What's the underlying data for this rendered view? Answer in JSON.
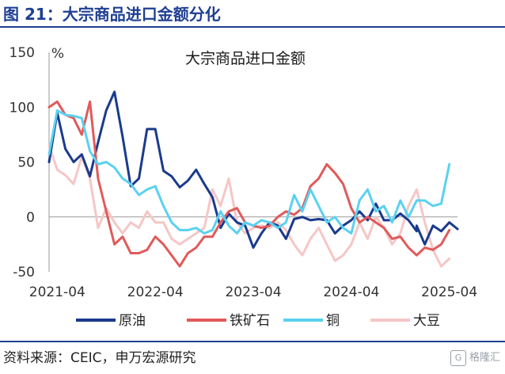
{
  "figure": {
    "title": "图 21：大宗商品进口金额分化"
  },
  "footer": {
    "source": "资料来源：CEIC，申万宏源研究",
    "watermark": "格隆汇"
  },
  "chart_data": {
    "type": "line",
    "title": "大宗商品进口金额",
    "ylabel": "%",
    "ylim": [
      -50,
      150
    ],
    "yticks": [
      150,
      100,
      50,
      0,
      -50
    ],
    "xlim": [
      "2021-03",
      "2025-05"
    ],
    "xticks": [
      "2021-04",
      "2022-04",
      "2023-04",
      "2024-04",
      "2025-04"
    ],
    "grid": false,
    "legend": "bottom",
    "series": [
      {
        "name": "原油",
        "color": "#1a3a8c",
        "points": [
          [
            "2021-03",
            50
          ],
          [
            "2021-04",
            95
          ],
          [
            "2021-05",
            62
          ],
          [
            "2021-06",
            50
          ],
          [
            "2021-07",
            57
          ],
          [
            "2021-08",
            37
          ],
          [
            "2021-09",
            68
          ],
          [
            "2021-10",
            97
          ],
          [
            "2021-11",
            114
          ],
          [
            "2021-12",
            73
          ],
          [
            "2022-01",
            28
          ],
          [
            "2022-02",
            35
          ],
          [
            "2022-03",
            80
          ],
          [
            "2022-04",
            80
          ],
          [
            "2022-05",
            42
          ],
          [
            "2022-06",
            37
          ],
          [
            "2022-07",
            27
          ],
          [
            "2022-08",
            33
          ],
          [
            "2022-09",
            43
          ],
          [
            "2022-10",
            30
          ],
          [
            "2022-11",
            18
          ],
          [
            "2022-12",
            -10
          ],
          [
            "2023-01",
            3
          ],
          [
            "2023-02",
            -5
          ],
          [
            "2023-03",
            -8
          ],
          [
            "2023-04",
            -28
          ],
          [
            "2023-05",
            -15
          ],
          [
            "2023-06",
            -5
          ],
          [
            "2023-07",
            -8
          ],
          [
            "2023-08",
            -20
          ],
          [
            "2023-09",
            -2
          ],
          [
            "2023-10",
            0
          ],
          [
            "2023-11",
            -3
          ],
          [
            "2023-12",
            -2
          ],
          [
            "2024-01",
            -3
          ],
          [
            "2024-02",
            -15
          ],
          [
            "2024-03",
            -8
          ],
          [
            "2024-04",
            -3
          ],
          [
            "2024-05",
            5
          ],
          [
            "2024-06",
            -3
          ],
          [
            "2024-07",
            12
          ],
          [
            "2024-08",
            -3
          ],
          [
            "2024-09",
            -3
          ],
          [
            "2024-10",
            3
          ],
          [
            "2024-11",
            -3
          ],
          [
            "2024-12",
            -13
          ],
          [
            "2024-12",
            -8
          ],
          [
            "2025-01",
            -25
          ],
          [
            "2025-02",
            -8
          ],
          [
            "2025-03",
            -13
          ],
          [
            "2025-04",
            -5
          ],
          [
            "2025-05",
            -11
          ]
        ]
      },
      {
        "name": "铁矿石",
        "color": "#e05a5a",
        "points": [
          [
            "2021-03",
            100
          ],
          [
            "2021-04",
            105
          ],
          [
            "2021-05",
            93
          ],
          [
            "2021-06",
            90
          ],
          [
            "2021-07",
            75
          ],
          [
            "2021-08",
            105
          ],
          [
            "2021-09",
            35
          ],
          [
            "2021-10",
            5
          ],
          [
            "2021-11",
            -25
          ],
          [
            "2021-12",
            -18
          ],
          [
            "2022-01",
            -33
          ],
          [
            "2022-02",
            -33
          ],
          [
            "2022-03",
            -30
          ],
          [
            "2022-04",
            -18
          ],
          [
            "2022-05",
            -25
          ],
          [
            "2022-06",
            -35
          ],
          [
            "2022-07",
            -45
          ],
          [
            "2022-08",
            -33
          ],
          [
            "2022-09",
            -28
          ],
          [
            "2022-10",
            -18
          ],
          [
            "2022-11",
            -18
          ],
          [
            "2022-12",
            -5
          ],
          [
            "2023-01",
            5
          ],
          [
            "2023-02",
            8
          ],
          [
            "2023-03",
            -5
          ],
          [
            "2023-04",
            -8
          ],
          [
            "2023-05",
            -10
          ],
          [
            "2023-06",
            -8
          ],
          [
            "2023-07",
            0
          ],
          [
            "2023-08",
            5
          ],
          [
            "2023-09",
            2
          ],
          [
            "2023-10",
            8
          ],
          [
            "2023-11",
            28
          ],
          [
            "2023-12",
            35
          ],
          [
            "2024-01",
            48
          ],
          [
            "2024-02",
            40
          ],
          [
            "2024-03",
            30
          ],
          [
            "2024-04",
            8
          ],
          [
            "2024-05",
            -5
          ],
          [
            "2024-06",
            0
          ],
          [
            "2024-07",
            -5
          ],
          [
            "2024-08",
            -10
          ],
          [
            "2024-09",
            -20
          ],
          [
            "2024-10",
            -18
          ],
          [
            "2024-11",
            -28
          ],
          [
            "2024-12",
            -35
          ],
          [
            "2025-01",
            -28
          ],
          [
            "2025-02",
            -30
          ],
          [
            "2025-03",
            -25
          ],
          [
            "2025-04",
            -12
          ]
        ]
      },
      {
        "name": "铜",
        "color": "#5bd1f0",
        "points": [
          [
            "2021-03",
            57
          ],
          [
            "2021-04",
            97
          ],
          [
            "2021-05",
            93
          ],
          [
            "2021-06",
            92
          ],
          [
            "2021-07",
            90
          ],
          [
            "2021-08",
            60
          ],
          [
            "2021-09",
            48
          ],
          [
            "2021-10",
            50
          ],
          [
            "2021-11",
            45
          ],
          [
            "2021-12",
            35
          ],
          [
            "2022-01",
            30
          ],
          [
            "2022-02",
            20
          ],
          [
            "2022-03",
            25
          ],
          [
            "2022-04",
            28
          ],
          [
            "2022-05",
            10
          ],
          [
            "2022-06",
            -5
          ],
          [
            "2022-07",
            -12
          ],
          [
            "2022-08",
            -12
          ],
          [
            "2022-09",
            -10
          ],
          [
            "2022-10",
            -15
          ],
          [
            "2022-11",
            -12
          ],
          [
            "2022-12",
            5
          ],
          [
            "2023-01",
            -8
          ],
          [
            "2023-02",
            -15
          ],
          [
            "2023-03",
            -5
          ],
          [
            "2023-04",
            -8
          ],
          [
            "2023-05",
            -3
          ],
          [
            "2023-06",
            -5
          ],
          [
            "2023-07",
            -10
          ],
          [
            "2023-08",
            -5
          ],
          [
            "2023-09",
            20
          ],
          [
            "2023-10",
            5
          ],
          [
            "2023-11",
            25
          ],
          [
            "2023-12",
            10
          ],
          [
            "2024-01",
            -5
          ],
          [
            "2024-02",
            0
          ],
          [
            "2024-03",
            -10
          ],
          [
            "2024-04",
            -15
          ],
          [
            "2024-05",
            15
          ],
          [
            "2024-06",
            25
          ],
          [
            "2024-07",
            5
          ],
          [
            "2024-08",
            10
          ],
          [
            "2024-09",
            -5
          ],
          [
            "2024-10",
            15
          ],
          [
            "2024-11",
            0
          ],
          [
            "2024-12",
            15
          ],
          [
            "2025-01",
            15
          ],
          [
            "2025-02",
            10
          ],
          [
            "2025-03",
            12
          ],
          [
            "2025-04",
            48
          ]
        ]
      },
      {
        "name": "大豆",
        "color": "#f6c6c6",
        "points": [
          [
            "2021-03",
            65
          ],
          [
            "2021-04",
            43
          ],
          [
            "2021-05",
            38
          ],
          [
            "2021-06",
            30
          ],
          [
            "2021-07",
            55
          ],
          [
            "2021-08",
            35
          ],
          [
            "2021-09",
            -10
          ],
          [
            "2021-10",
            8
          ],
          [
            "2021-11",
            -5
          ],
          [
            "2021-12",
            -15
          ],
          [
            "2022-01",
            -5
          ],
          [
            "2022-02",
            -10
          ],
          [
            "2022-03",
            5
          ],
          [
            "2022-04",
            -5
          ],
          [
            "2022-05",
            -5
          ],
          [
            "2022-06",
            -20
          ],
          [
            "2022-07",
            -25
          ],
          [
            "2022-08",
            -20
          ],
          [
            "2022-09",
            -15
          ],
          [
            "2022-10",
            -10
          ],
          [
            "2022-11",
            25
          ],
          [
            "2022-12",
            10
          ],
          [
            "2023-01",
            35
          ],
          [
            "2023-02",
            -5
          ],
          [
            "2023-03",
            -15
          ],
          [
            "2023-04",
            -10
          ],
          [
            "2023-05",
            -8
          ],
          [
            "2023-06",
            -10
          ],
          [
            "2023-07",
            -5
          ],
          [
            "2023-08",
            -12
          ],
          [
            "2023-09",
            -25
          ],
          [
            "2023-10",
            -35
          ],
          [
            "2023-11",
            -20
          ],
          [
            "2023-12",
            -10
          ],
          [
            "2024-01",
            -25
          ],
          [
            "2024-02",
            -40
          ],
          [
            "2024-03",
            -35
          ],
          [
            "2024-04",
            -25
          ],
          [
            "2024-05",
            -5
          ],
          [
            "2024-06",
            -20
          ],
          [
            "2024-07",
            0
          ],
          [
            "2024-08",
            -10
          ],
          [
            "2024-09",
            -25
          ],
          [
            "2024-10",
            -15
          ],
          [
            "2024-11",
            10
          ],
          [
            "2024-12",
            25
          ],
          [
            "2025-01",
            -5
          ],
          [
            "2025-02",
            -30
          ],
          [
            "2025-03",
            -45
          ],
          [
            "2025-04",
            -38
          ]
        ]
      }
    ]
  }
}
